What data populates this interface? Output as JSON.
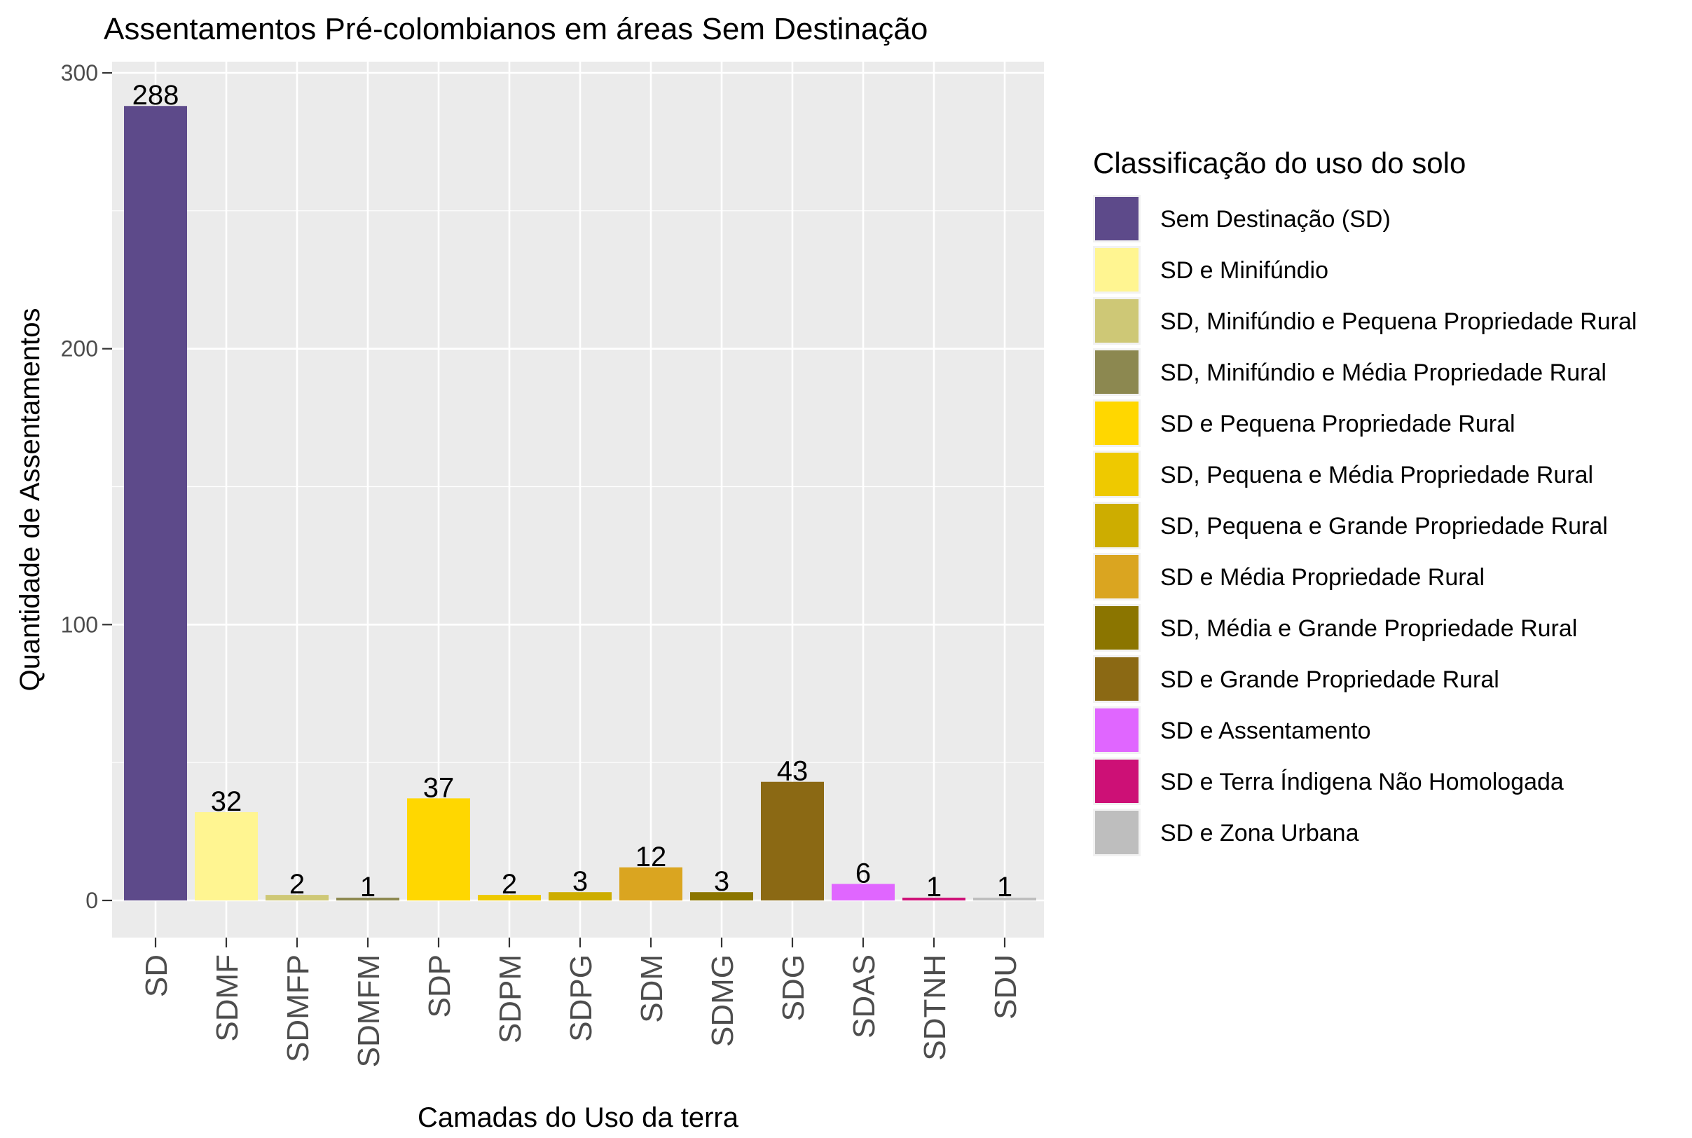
{
  "chart_data": {
    "type": "bar",
    "title": "Assentamentos Pré-colombianos em áreas Sem Destinação",
    "xlabel": "Camadas do Uso da terra",
    "ylabel": "Quantidade de Assentamentos",
    "ylim": [
      0,
      300
    ],
    "yticks": [
      0,
      100,
      200,
      300
    ],
    "categories": [
      "SD",
      "SDMF",
      "SDMFP",
      "SDMFM",
      "SDP",
      "SDPM",
      "SDPG",
      "SDM",
      "SDMG",
      "SDG",
      "SDAS",
      "SDTNH",
      "SDU"
    ],
    "values": [
      288,
      32,
      2,
      1,
      37,
      2,
      3,
      12,
      3,
      43,
      6,
      1,
      1
    ],
    "colors": [
      "#5d4a8a",
      "#fff591",
      "#cec876",
      "#8c8850",
      "#ffd700",
      "#eec900",
      "#cdad00",
      "#daa520",
      "#8b7500",
      "#8b6914",
      "#e066ff",
      "#cd1076",
      "#bebebe"
    ],
    "grid": true,
    "legend": {
      "title": "Classificação do uso do solo",
      "position": "right",
      "items": [
        "Sem Destinação (SD)",
        "SD e Minifúndio",
        "SD, Minifúndio e Pequena Propriedade Rural",
        "SD, Minifúndio e Média Propriedade Rural",
        "SD e Pequena Propriedade Rural",
        "SD, Pequena e Média Propriedade Rural",
        "SD, Pequena e Grande Propriedade Rural",
        "SD e Média Propriedade Rural",
        "SD, Média e Grande Propriedade Rural",
        "SD e Grande Propriedade Rural",
        "SD e Assentamento",
        "SD e Terra Índigena Não Homologada",
        "SD e Zona Urbana"
      ]
    }
  }
}
